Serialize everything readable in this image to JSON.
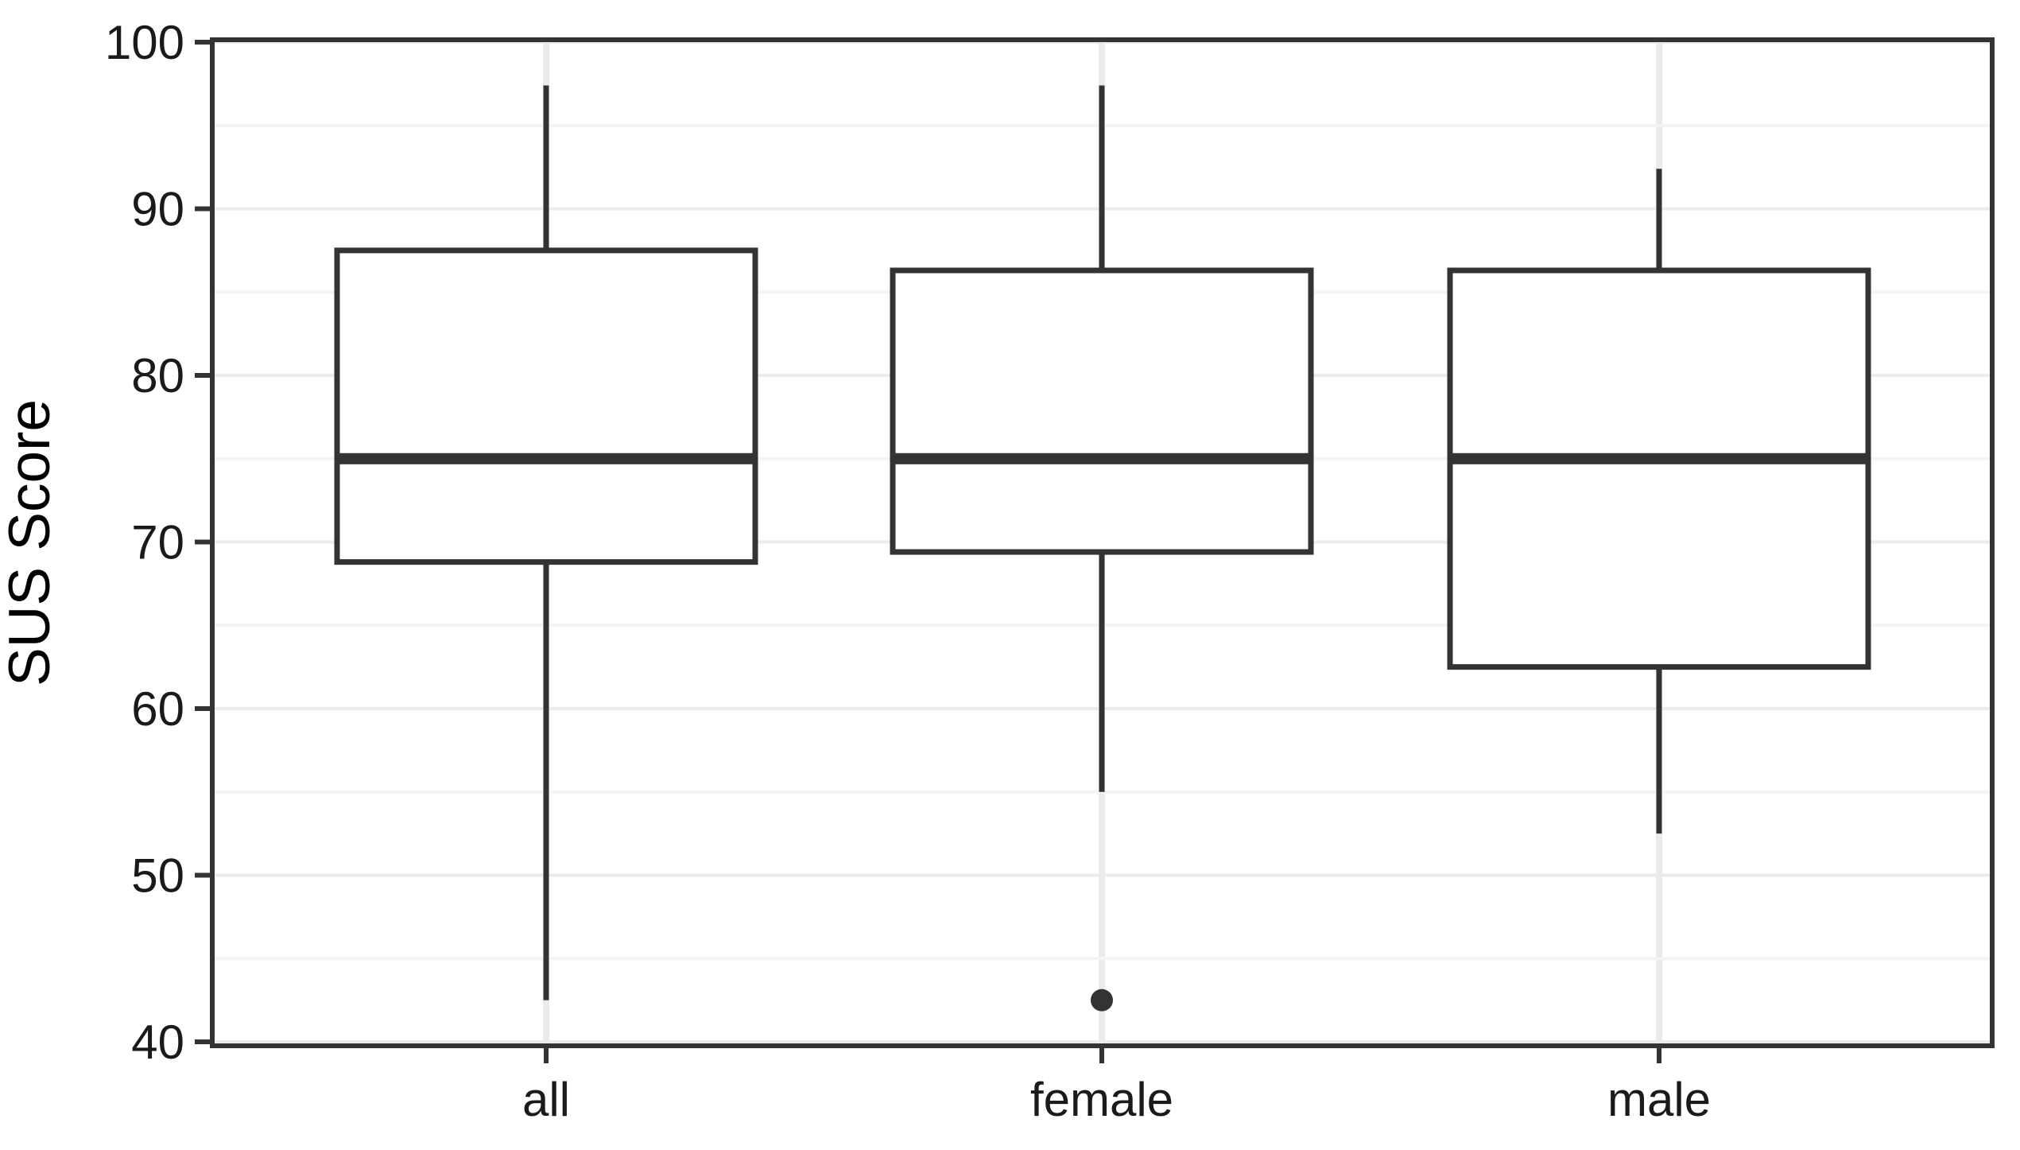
{
  "figure": {
    "description": "Boxplot of SUS Score for groups all, female, male"
  },
  "chart_data": {
    "type": "boxplot",
    "title": "",
    "xlabel": "",
    "ylabel": "SUS Score",
    "categories": [
      "all",
      "female",
      "male"
    ],
    "ylim": [
      40,
      100
    ],
    "y_major_ticks": [
      40,
      50,
      60,
      70,
      80,
      90,
      100
    ],
    "y_minor_ticks": [
      45,
      55,
      65,
      75,
      85,
      95
    ],
    "grid": true,
    "legend": "none",
    "series": [
      {
        "name": "all",
        "whisker_low": 42.5,
        "q1": 68.8,
        "median": 75,
        "q3": 87.5,
        "whisker_high": 97.4,
        "outliers": []
      },
      {
        "name": "female",
        "whisker_low": 55.0,
        "q1": 69.4,
        "median": 75,
        "q3": 86.3,
        "whisker_high": 97.4,
        "outliers": [
          42.5
        ]
      },
      {
        "name": "male",
        "whisker_low": 52.5,
        "q1": 62.5,
        "median": 75,
        "q3": 86.3,
        "whisker_high": 92.4,
        "outliers": []
      }
    ],
    "colors": {
      "box_stroke": "#333333",
      "box_fill": "#ffffff",
      "panel_border": "#333333",
      "grid_major": "#ebebeb",
      "grid_minor": "#f4f4f4",
      "tick_mark": "#333333",
      "tick_label": "#1a1a1a",
      "axis_title": "#000000",
      "background": "#ffffff",
      "outlier": "#333333"
    }
  }
}
